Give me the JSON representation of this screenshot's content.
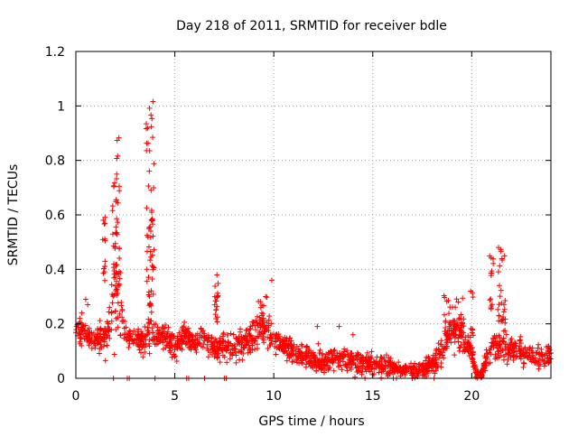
{
  "chart_data": {
    "type": "scatter",
    "title": "Day 218 of 2011, SRMTID for receiver bdle",
    "xlabel": "GPS time / hours",
    "ylabel": "SRMTID / TECUs",
    "xlim": [
      0,
      24
    ],
    "ylim": [
      0,
      1.2
    ],
    "x_ticks": [
      0,
      5,
      10,
      15,
      20
    ],
    "x_tick_labels": [
      "0",
      "5",
      "10",
      "15",
      "20"
    ],
    "y_ticks": [
      0,
      0.2,
      0.4,
      0.6,
      0.8,
      1,
      1.2
    ],
    "y_tick_labels": [
      "0",
      "0.2",
      "0.4",
      "0.6",
      "0.8",
      "1",
      "1.2"
    ],
    "grid": true,
    "marker": "+",
    "series": [
      {
        "name": "SRMTID",
        "color": "#ff0000",
        "profile_x": [
          0.0,
          0.5,
          1.0,
          1.5,
          1.8,
          2.0,
          2.2,
          2.5,
          3.0,
          3.5,
          3.8,
          4.0,
          4.5,
          5.0,
          5.5,
          6.0,
          6.5,
          7.0,
          7.5,
          8.0,
          8.5,
          9.0,
          9.5,
          10.0,
          10.5,
          11.0,
          11.5,
          12.0,
          12.5,
          13.0,
          13.5,
          14.0,
          14.5,
          15.0,
          15.5,
          16.0,
          16.5,
          17.0,
          17.5,
          18.0,
          18.5,
          19.0,
          19.5,
          20.0,
          20.2,
          20.5,
          21.0,
          21.5,
          22.0,
          22.5,
          23.0,
          23.5,
          24.0
        ],
        "profile_base": [
          0.17,
          0.17,
          0.14,
          0.15,
          0.25,
          0.3,
          0.3,
          0.14,
          0.15,
          0.14,
          0.2,
          0.15,
          0.16,
          0.12,
          0.16,
          0.13,
          0.15,
          0.11,
          0.12,
          0.12,
          0.13,
          0.16,
          0.18,
          0.13,
          0.12,
          0.1,
          0.08,
          0.07,
          0.06,
          0.08,
          0.07,
          0.06,
          0.06,
          0.05,
          0.05,
          0.04,
          0.03,
          0.03,
          0.03,
          0.05,
          0.1,
          0.18,
          0.16,
          0.1,
          0.02,
          0.02,
          0.12,
          0.12,
          0.1,
          0.1,
          0.08,
          0.08,
          0.08
        ],
        "profile_spread": [
          0.05,
          0.05,
          0.04,
          0.06,
          0.12,
          0.2,
          0.15,
          0.04,
          0.04,
          0.05,
          0.12,
          0.05,
          0.04,
          0.05,
          0.05,
          0.04,
          0.05,
          0.05,
          0.05,
          0.05,
          0.06,
          0.07,
          0.06,
          0.04,
          0.05,
          0.04,
          0.04,
          0.04,
          0.04,
          0.05,
          0.04,
          0.04,
          0.04,
          0.04,
          0.04,
          0.03,
          0.03,
          0.03,
          0.03,
          0.04,
          0.06,
          0.08,
          0.07,
          0.04,
          0.02,
          0.02,
          0.06,
          0.06,
          0.05,
          0.05,
          0.04,
          0.04,
          0.04
        ],
        "bursts": [
          {
            "x_from": 1.85,
            "x_to": 2.2,
            "y_from": 0.3,
            "y_to": 0.9,
            "count": 45
          },
          {
            "x_from": 1.35,
            "x_to": 1.5,
            "y_from": 0.35,
            "y_to": 0.6,
            "count": 14
          },
          {
            "x_from": 3.55,
            "x_to": 3.95,
            "y_from": 0.3,
            "y_to": 1.02,
            "count": 55
          },
          {
            "x_from": 7.0,
            "x_to": 7.2,
            "y_from": 0.2,
            "y_to": 0.38,
            "count": 18
          },
          {
            "x_from": 18.6,
            "x_to": 19.6,
            "y_from": 0.15,
            "y_to": 0.31,
            "count": 40
          },
          {
            "x_from": 19.8,
            "x_to": 20.1,
            "y_from": 0.15,
            "y_to": 0.33,
            "count": 10
          },
          {
            "x_from": 20.9,
            "x_to": 21.1,
            "y_from": 0.25,
            "y_to": 0.47,
            "count": 14
          },
          {
            "x_from": 21.3,
            "x_to": 21.7,
            "y_from": 0.2,
            "y_to": 0.49,
            "count": 28
          },
          {
            "x_from": 9.2,
            "x_to": 9.8,
            "y_from": 0.2,
            "y_to": 0.3,
            "count": 16
          }
        ],
        "points": [
          [
            9.9,
            0.36
          ],
          [
            0.2,
            0.22
          ],
          [
            0.3,
            0.24
          ],
          [
            0.5,
            0.29
          ],
          [
            0.6,
            0.27
          ],
          [
            13.3,
            0.19
          ],
          [
            12.2,
            0.19
          ],
          [
            14.0,
            0.16
          ],
          [
            1.9,
            0.0
          ],
          [
            2.6,
            0.0
          ],
          [
            2.7,
            0.0
          ],
          [
            4.0,
            0.0
          ],
          [
            5.6,
            0.0
          ],
          [
            5.7,
            0.0
          ],
          [
            6.5,
            0.0
          ],
          [
            7.5,
            0.0
          ],
          [
            7.6,
            0.0
          ],
          [
            16.2,
            0.0
          ],
          [
            17.0,
            0.0
          ],
          [
            18.1,
            0.0
          ]
        ],
        "count": 1800
      }
    ]
  }
}
